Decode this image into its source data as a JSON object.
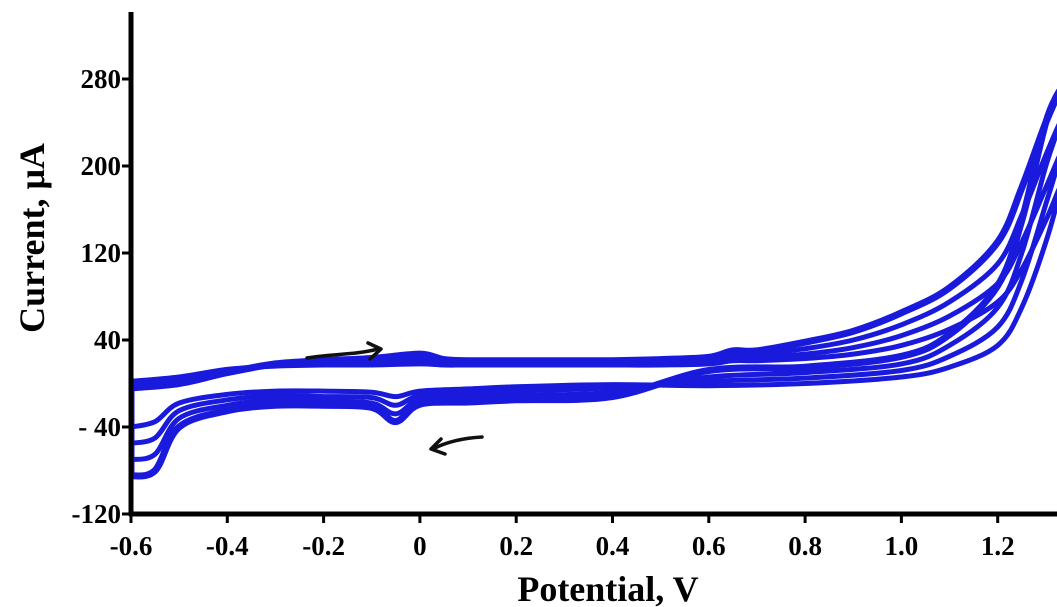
{
  "chart_data": {
    "type": "line",
    "title": "",
    "xlabel": "Potential, V",
    "ylabel": "Current, μA",
    "xlim": [
      -0.6,
      1.33
    ],
    "ylim": [
      -120,
      350
    ],
    "xticks": [
      "-0.6",
      "-0.4",
      "-0.2",
      "0",
      "0.2",
      "0.4",
      "0.6",
      "0.8",
      "1.0",
      "1.2"
    ],
    "yticks": [
      "-120",
      "- 40",
      "40",
      "120",
      "200",
      "280"
    ],
    "xtick_values": [
      -0.6,
      -0.4,
      -0.2,
      0,
      0.2,
      0.4,
      0.6,
      0.8,
      1.0,
      1.2
    ],
    "ytick_values": [
      -120,
      -40,
      40,
      120,
      200,
      280
    ],
    "grid": false,
    "legend": "none",
    "color": "#1a1adc",
    "annotations": [
      "arrow-forward-scan",
      "arrow-reverse-scan"
    ],
    "series": [
      {
        "values": [
          [
            -0.6,
            -4
          ],
          [
            -0.5,
            0
          ],
          [
            -0.4,
            10
          ],
          [
            -0.3,
            18
          ],
          [
            -0.2,
            21
          ],
          [
            -0.1,
            23
          ],
          [
            0,
            27
          ],
          [
            0.05,
            22
          ],
          [
            0.1,
            21
          ],
          [
            0.2,
            21
          ],
          [
            0.3,
            21
          ],
          [
            0.4,
            21
          ],
          [
            0.5,
            22
          ],
          [
            0.6,
            24
          ],
          [
            0.65,
            30
          ],
          [
            0.7,
            30
          ],
          [
            0.8,
            38
          ],
          [
            0.9,
            48
          ],
          [
            1.0,
            65
          ],
          [
            1.1,
            88
          ],
          [
            1.2,
            130
          ],
          [
            1.25,
            180
          ],
          [
            1.3,
            240
          ],
          [
            1.33,
            270
          ],
          [
            1.3,
            240
          ],
          [
            1.25,
            150
          ],
          [
            1.2,
            90
          ],
          [
            1.1,
            45
          ],
          [
            1.0,
            25
          ],
          [
            0.8,
            15
          ],
          [
            0.6,
            12
          ],
          [
            0.4,
            -12
          ],
          [
            0.2,
            -15
          ],
          [
            0.1,
            -17
          ],
          [
            0,
            -19
          ],
          [
            -0.05,
            -35
          ],
          [
            -0.1,
            -22
          ],
          [
            -0.2,
            -20
          ],
          [
            -0.3,
            -20
          ],
          [
            -0.4,
            -25
          ],
          [
            -0.5,
            -40
          ],
          [
            -0.55,
            -80
          ],
          [
            -0.6,
            -85
          ]
        ]
      },
      {
        "values": [
          [
            -0.6,
            -2
          ],
          [
            -0.5,
            2
          ],
          [
            -0.4,
            11
          ],
          [
            -0.3,
            18
          ],
          [
            -0.2,
            20
          ],
          [
            -0.1,
            21
          ],
          [
            0,
            24
          ],
          [
            0.05,
            21
          ],
          [
            0.1,
            20
          ],
          [
            0.2,
            20
          ],
          [
            0.3,
            20
          ],
          [
            0.4,
            20
          ],
          [
            0.5,
            21
          ],
          [
            0.6,
            22
          ],
          [
            0.65,
            27
          ],
          [
            0.7,
            27
          ],
          [
            0.8,
            32
          ],
          [
            0.9,
            40
          ],
          [
            1.0,
            54
          ],
          [
            1.1,
            75
          ],
          [
            1.2,
            110
          ],
          [
            1.25,
            155
          ],
          [
            1.3,
            210
          ],
          [
            1.33,
            240
          ],
          [
            1.3,
            200
          ],
          [
            1.25,
            120
          ],
          [
            1.2,
            70
          ],
          [
            1.1,
            35
          ],
          [
            1.0,
            18
          ],
          [
            0.8,
            10
          ],
          [
            0.6,
            6
          ],
          [
            0.4,
            -8
          ],
          [
            0.2,
            -11
          ],
          [
            0.1,
            -13
          ],
          [
            0,
            -15
          ],
          [
            -0.05,
            -28
          ],
          [
            -0.1,
            -18
          ],
          [
            -0.2,
            -16
          ],
          [
            -0.3,
            -15
          ],
          [
            -0.4,
            -20
          ],
          [
            -0.5,
            -32
          ],
          [
            -0.55,
            -65
          ],
          [
            -0.6,
            -70
          ]
        ]
      },
      {
        "values": [
          [
            -0.6,
            0
          ],
          [
            -0.5,
            4
          ],
          [
            -0.4,
            12
          ],
          [
            -0.3,
            17
          ],
          [
            -0.2,
            19
          ],
          [
            -0.1,
            19
          ],
          [
            0,
            21
          ],
          [
            0.05,
            19
          ],
          [
            0.1,
            19
          ],
          [
            0.2,
            19
          ],
          [
            0.3,
            19
          ],
          [
            0.4,
            19
          ],
          [
            0.5,
            19
          ],
          [
            0.6,
            20
          ],
          [
            0.65,
            24
          ],
          [
            0.7,
            24
          ],
          [
            0.8,
            27
          ],
          [
            0.9,
            33
          ],
          [
            1.0,
            44
          ],
          [
            1.1,
            62
          ],
          [
            1.2,
            92
          ],
          [
            1.25,
            130
          ],
          [
            1.3,
            180
          ],
          [
            1.33,
            210
          ],
          [
            1.3,
            165
          ],
          [
            1.25,
            95
          ],
          [
            1.2,
            52
          ],
          [
            1.1,
            25
          ],
          [
            1.0,
            12
          ],
          [
            0.8,
            5
          ],
          [
            0.6,
            2
          ],
          [
            0.4,
            -4
          ],
          [
            0.2,
            -7
          ],
          [
            0.1,
            -9
          ],
          [
            0,
            -11
          ],
          [
            -0.05,
            -20
          ],
          [
            -0.1,
            -13
          ],
          [
            -0.2,
            -12
          ],
          [
            -0.3,
            -11
          ],
          [
            -0.4,
            -15
          ],
          [
            -0.5,
            -25
          ],
          [
            -0.55,
            -50
          ],
          [
            -0.6,
            -55
          ]
        ]
      },
      {
        "values": [
          [
            -0.6,
            2
          ],
          [
            -0.5,
            6
          ],
          [
            -0.4,
            13
          ],
          [
            -0.3,
            16
          ],
          [
            -0.2,
            17
          ],
          [
            -0.1,
            17
          ],
          [
            0,
            18
          ],
          [
            0.05,
            17
          ],
          [
            0.1,
            17
          ],
          [
            0.2,
            17
          ],
          [
            0.3,
            17
          ],
          [
            0.4,
            17
          ],
          [
            0.5,
            17
          ],
          [
            0.6,
            18
          ],
          [
            0.65,
            21
          ],
          [
            0.7,
            21
          ],
          [
            0.8,
            23
          ],
          [
            0.9,
            27
          ],
          [
            1.0,
            35
          ],
          [
            1.1,
            50
          ],
          [
            1.2,
            75
          ],
          [
            1.25,
            105
          ],
          [
            1.3,
            150
          ],
          [
            1.33,
            180
          ],
          [
            1.3,
            130
          ],
          [
            1.25,
            70
          ],
          [
            1.2,
            35
          ],
          [
            1.1,
            15
          ],
          [
            1.0,
            6
          ],
          [
            0.8,
            0
          ],
          [
            0.6,
            -2
          ],
          [
            0.4,
            -1
          ],
          [
            0.2,
            -3
          ],
          [
            0.1,
            -5
          ],
          [
            0,
            -7
          ],
          [
            -0.05,
            -12
          ],
          [
            -0.1,
            -8
          ],
          [
            -0.2,
            -7
          ],
          [
            -0.3,
            -7
          ],
          [
            -0.4,
            -10
          ],
          [
            -0.5,
            -18
          ],
          [
            -0.55,
            -35
          ],
          [
            -0.6,
            -40
          ]
        ]
      }
    ]
  }
}
